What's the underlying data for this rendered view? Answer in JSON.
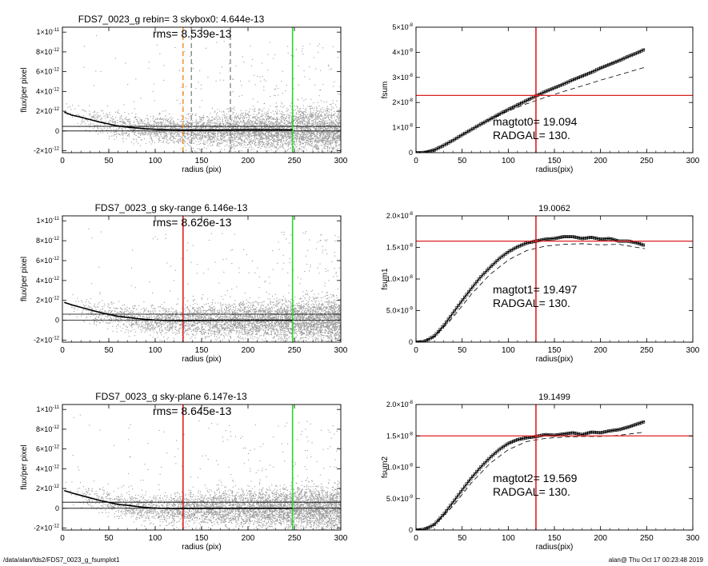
{
  "colors": {
    "background": "#ffffff",
    "axes": "#000000",
    "scatter": "#9a9a9a",
    "profile": "#000000",
    "red": "#e02020",
    "orange": "#f08a1c",
    "green": "#22dd22",
    "dash_grey": "#888888"
  },
  "footer": {
    "left": "/data/alan/fds2/FDS7_0023_g_fsumplot1",
    "right": "alan@  Thu Oct 17 00:23:48 2019"
  },
  "chart_data": [
    {
      "id": "profile-rebin",
      "type": "scatter",
      "title": "FDS7_0023_g rebin= 3    skybox0:  4.644e-13",
      "annotation": "rms= 8.539e-13",
      "xlabel": "radius (pix)",
      "ylabel": "flux/per pixel",
      "xlim": [
        0,
        300
      ],
      "ylim": [
        -2.2e-12,
        1.05e-11
      ],
      "x_ticks": [
        0,
        50,
        100,
        150,
        200,
        250,
        300
      ],
      "y_ticks": [
        -2e-12,
        0,
        2e-12,
        4e-12,
        6e-12,
        8e-12,
        1e-11
      ],
      "y_tick_labels": [
        [
          "-2",
          "-12"
        ],
        [
          "0",
          ""
        ],
        [
          "2",
          "-12"
        ],
        [
          "4",
          "-12"
        ],
        [
          "6",
          "-12"
        ],
        [
          "8",
          "-12"
        ],
        [
          "1",
          "-11"
        ]
      ],
      "hlines": [
        0,
        4.644e-13
      ],
      "vlines": [
        {
          "x": 130,
          "color": "orange",
          "dash": true
        },
        {
          "x": 139,
          "color": "dash_grey",
          "dash": true
        },
        {
          "x": 181,
          "color": "dash_grey",
          "dash": true
        },
        {
          "x": 248,
          "color": "green",
          "dash": false
        }
      ],
      "profile": {
        "x": [
          2,
          10,
          20,
          30,
          40,
          50,
          60,
          70,
          80,
          90,
          100,
          110,
          120,
          130,
          150,
          175,
          200,
          225,
          248
        ],
        "y": [
          1.9e-12,
          1.6e-12,
          1.4e-12,
          1.15e-12,
          9e-13,
          7e-13,
          5e-13,
          4e-13,
          3e-13,
          2.2e-13,
          1.6e-13,
          1.3e-13,
          1.1e-13,
          1e-13,
          1e-13,
          1.1e-13,
          1.2e-13,
          1.2e-13,
          1.2e-13
        ]
      }
    },
    {
      "id": "curve-fsum",
      "type": "line",
      "title": "",
      "xlabel": "radius(pix)",
      "ylabel": "fsum",
      "xlim": [
        0,
        300
      ],
      "ylim": [
        0,
        5e-08
      ],
      "x_ticks": [
        0,
        50,
        100,
        150,
        200,
        250,
        300
      ],
      "y_ticks": [
        0,
        1e-08,
        2e-08,
        3e-08,
        4e-08,
        5e-08
      ],
      "y_tick_labels": [
        [
          "0",
          ""
        ],
        [
          "1",
          "-8"
        ],
        [
          "2",
          "-8"
        ],
        [
          "3",
          "-8"
        ],
        [
          "4",
          "-8"
        ],
        [
          "5",
          "-8"
        ]
      ],
      "annotation_lines": [
        "magtot0=  19.094",
        "RADGAL=    130."
      ],
      "hline": {
        "y": 2.28e-08,
        "color": "red"
      },
      "vline": {
        "x": 130,
        "color": "red"
      },
      "series": [
        {
          "style": "markers",
          "x": [
            0,
            10,
            20,
            30,
            40,
            50,
            60,
            70,
            80,
            90,
            100,
            110,
            120,
            130,
            140,
            150,
            160,
            170,
            180,
            190,
            200,
            210,
            220,
            230,
            240,
            248
          ],
          "y": [
            0,
            1e-10,
            1.1e-09,
            2.9e-09,
            4.9e-09,
            7.1e-09,
            9.2e-09,
            1.13e-08,
            1.33e-08,
            1.53e-08,
            1.72e-08,
            1.9e-08,
            2.08e-08,
            2.26e-08,
            2.43e-08,
            2.58e-08,
            2.74e-08,
            2.9e-08,
            3.05e-08,
            3.2e-08,
            3.37e-08,
            3.52e-08,
            3.67e-08,
            3.83e-08,
            3.98e-08,
            4.12e-08
          ]
        },
        {
          "style": "dashed",
          "x": [
            0,
            20,
            40,
            60,
            80,
            100,
            120,
            140,
            160,
            180,
            200,
            220,
            248
          ],
          "y": [
            0,
            1e-09,
            4.9e-09,
            9.2e-09,
            1.32e-08,
            1.66e-08,
            1.95e-08,
            2.2e-08,
            2.44e-08,
            2.66e-08,
            2.89e-08,
            3.1e-08,
            3.4e-08
          ]
        }
      ]
    },
    {
      "id": "profile-sky-range",
      "type": "scatter",
      "title": "FDS7_0023_g sky-range  6.146e-13",
      "annotation": "rms= 8.626e-13",
      "xlabel": "radius (pix)",
      "ylabel": "flux/per pixel",
      "xlim": [
        0,
        300
      ],
      "ylim": [
        -2.2e-12,
        1.05e-11
      ],
      "x_ticks": [
        0,
        50,
        100,
        150,
        200,
        250,
        300
      ],
      "y_ticks": [
        -2e-12,
        0,
        2e-12,
        4e-12,
        6e-12,
        8e-12,
        1e-11
      ],
      "y_tick_labels": [
        [
          "-2",
          "-12"
        ],
        [
          "0",
          ""
        ],
        [
          "2",
          "-12"
        ],
        [
          "4",
          "-12"
        ],
        [
          "6",
          "-12"
        ],
        [
          "8",
          "-12"
        ],
        [
          "1",
          "-11"
        ]
      ],
      "hlines": [
        0,
        6.146e-13
      ],
      "vlines": [
        {
          "x": 130,
          "color": "red",
          "dash": false
        },
        {
          "x": 248,
          "color": "green",
          "dash": false
        }
      ],
      "profile": {
        "x": [
          2,
          10,
          20,
          30,
          40,
          50,
          60,
          70,
          80,
          90,
          100,
          110,
          120,
          130,
          150,
          175,
          200,
          225,
          248
        ],
        "y": [
          1.8e-12,
          1.55e-12,
          1.3e-12,
          1.05e-12,
          8e-13,
          6e-13,
          4e-13,
          3e-13,
          1.8e-13,
          8e-14,
          2e-14,
          -1e-14,
          -2e-14,
          -2e-14,
          -1e-14,
          0,
          0,
          0,
          0
        ]
      }
    },
    {
      "id": "curve-fsum1",
      "type": "line",
      "title": "19.0062",
      "xlabel": "radius(pix)",
      "ylabel": "fsum1",
      "xlim": [
        0,
        300
      ],
      "ylim": [
        0,
        2e-08
      ],
      "x_ticks": [
        0,
        50,
        100,
        150,
        200,
        250,
        300
      ],
      "y_ticks": [
        0,
        5e-09,
        1e-08,
        1.5e-08,
        2e-08
      ],
      "y_tick_labels": [
        [
          "0",
          ""
        ],
        [
          "5.0",
          "-9"
        ],
        [
          "1.0",
          "-8"
        ],
        [
          "1.5",
          "-8"
        ],
        [
          "2.0",
          "-8"
        ]
      ],
      "annotation_lines": [
        "magtot1=  19.497",
        "RADGAL=    130."
      ],
      "hline": {
        "y": 1.6e-08,
        "color": "red"
      },
      "vline": {
        "x": 130,
        "color": "red"
      },
      "series": [
        {
          "style": "markers",
          "x": [
            0,
            10,
            20,
            30,
            40,
            50,
            60,
            70,
            80,
            90,
            100,
            110,
            120,
            130,
            140,
            150,
            160,
            170,
            180,
            190,
            200,
            210,
            220,
            230,
            240,
            248
          ],
          "y": [
            0,
            1e-10,
            1e-09,
            2.6e-09,
            4.6e-09,
            6.6e-09,
            8.5e-09,
            1.03e-08,
            1.18e-08,
            1.32e-08,
            1.43e-08,
            1.51e-08,
            1.57e-08,
            1.6e-08,
            1.63e-08,
            1.64e-08,
            1.67e-08,
            1.67e-08,
            1.64e-08,
            1.66e-08,
            1.63e-08,
            1.64e-08,
            1.6e-08,
            1.6e-08,
            1.57e-08,
            1.53e-08
          ]
        },
        {
          "style": "dashed",
          "x": [
            0,
            20,
            40,
            60,
            80,
            100,
            120,
            140,
            160,
            180,
            200,
            220,
            248
          ],
          "y": [
            0,
            8e-10,
            3.9e-09,
            7.6e-09,
            1.07e-08,
            1.3e-08,
            1.45e-08,
            1.52e-08,
            1.55e-08,
            1.56e-08,
            1.54e-08,
            1.55e-08,
            1.48e-08
          ]
        }
      ]
    },
    {
      "id": "profile-sky-plane",
      "type": "scatter",
      "title": "FDS7_0023_g sky-plane  6.147e-13",
      "annotation": "rms= 8.645e-13",
      "xlabel": "radius (pix)",
      "ylabel": "flux/per pixel",
      "xlim": [
        0,
        300
      ],
      "ylim": [
        -2.2e-12,
        1.05e-11
      ],
      "x_ticks": [
        0,
        50,
        100,
        150,
        200,
        250,
        300
      ],
      "y_ticks": [
        -2e-12,
        0,
        2e-12,
        4e-12,
        6e-12,
        8e-12,
        1e-11
      ],
      "y_tick_labels": [
        [
          "-2",
          "-12"
        ],
        [
          "0",
          ""
        ],
        [
          "2",
          "-12"
        ],
        [
          "4",
          "-12"
        ],
        [
          "6",
          "-12"
        ],
        [
          "8",
          "-12"
        ],
        [
          "1",
          "-11"
        ]
      ],
      "hlines": [
        0,
        6.147e-13
      ],
      "vlines": [
        {
          "x": 130,
          "color": "red",
          "dash": false
        },
        {
          "x": 248,
          "color": "green",
          "dash": false
        }
      ],
      "profile": {
        "x": [
          2,
          10,
          20,
          30,
          40,
          50,
          60,
          70,
          80,
          90,
          100,
          110,
          120,
          130,
          150,
          175,
          200,
          225,
          248
        ],
        "y": [
          1.8e-12,
          1.55e-12,
          1.3e-12,
          1.05e-12,
          8e-13,
          6e-13,
          4e-13,
          3e-13,
          1.8e-13,
          8e-14,
          2e-14,
          -1e-14,
          -2e-14,
          -2e-14,
          -1e-14,
          0,
          0,
          0,
          0
        ]
      }
    },
    {
      "id": "curve-fsum2",
      "type": "line",
      "title": "19.1499",
      "xlabel": "radius(pix)",
      "ylabel": "fsum2",
      "xlim": [
        0,
        300
      ],
      "ylim": [
        0,
        2e-08
      ],
      "x_ticks": [
        0,
        50,
        100,
        150,
        200,
        250,
        300
      ],
      "y_ticks": [
        0,
        5e-09,
        1e-08,
        1.5e-08,
        2e-08
      ],
      "y_tick_labels": [
        [
          "0",
          ""
        ],
        [
          "5.0",
          "-9"
        ],
        [
          "1.0",
          "-8"
        ],
        [
          "1.5",
          "-8"
        ],
        [
          "2.0",
          "-8"
        ]
      ],
      "annotation_lines": [
        "magtot2=  19.569",
        "RADGAL=    130."
      ],
      "hline": {
        "y": 1.5e-08,
        "color": "red"
      },
      "vline": {
        "x": 130,
        "color": "red"
      },
      "series": [
        {
          "style": "markers",
          "x": [
            0,
            10,
            20,
            30,
            40,
            50,
            60,
            70,
            80,
            90,
            100,
            110,
            120,
            130,
            140,
            150,
            160,
            170,
            180,
            190,
            200,
            210,
            220,
            230,
            240,
            248
          ],
          "y": [
            0,
            1e-10,
            9e-10,
            2.5e-09,
            4.4e-09,
            6.4e-09,
            8.3e-09,
            1e-08,
            1.15e-08,
            1.28e-08,
            1.38e-08,
            1.44e-08,
            1.47e-08,
            1.49e-08,
            1.52e-08,
            1.51e-08,
            1.53e-08,
            1.55e-08,
            1.52e-08,
            1.56e-08,
            1.55e-08,
            1.58e-08,
            1.6e-08,
            1.64e-08,
            1.69e-08,
            1.73e-08
          ]
        },
        {
          "style": "dashed",
          "x": [
            0,
            20,
            40,
            60,
            80,
            100,
            120,
            140,
            160,
            180,
            200,
            220,
            248
          ],
          "y": [
            0,
            8e-10,
            3.8e-09,
            7.5e-09,
            1.06e-08,
            1.28e-08,
            1.41e-08,
            1.46e-08,
            1.48e-08,
            1.49e-08,
            1.49e-08,
            1.51e-08,
            1.56e-08
          ]
        }
      ]
    }
  ]
}
